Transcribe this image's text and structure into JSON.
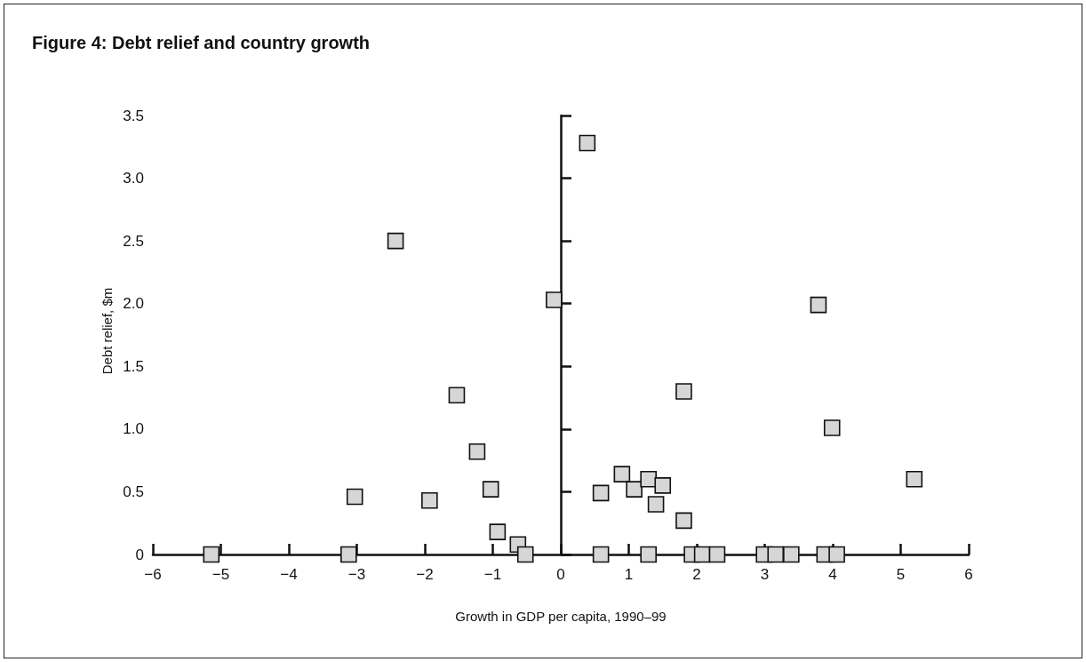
{
  "chart_data": {
    "type": "scatter",
    "title": "Figure 4: Debt relief and country growth",
    "xlabel": "Growth in GDP per capita, 1990–99",
    "ylabel": "Debt relief, $m",
    "x": [
      -5.14,
      -3.12,
      -3.03,
      -2.43,
      -1.93,
      -1.53,
      -1.23,
      -1.03,
      -0.93,
      -0.63,
      -0.52,
      -0.1,
      0.39,
      0.59,
      0.59,
      0.9,
      1.08,
      1.29,
      1.5,
      1.4,
      1.29,
      1.81,
      1.81,
      1.93,
      2.08,
      2.3,
      2.99,
      3.16,
      3.39,
      3.88,
      4.06,
      3.79,
      3.99,
      5.2
    ],
    "values": [
      0,
      0,
      0.46,
      2.5,
      0.43,
      1.27,
      0.82,
      0.52,
      0.18,
      0.08,
      0,
      2.03,
      3.28,
      0.49,
      0,
      0.64,
      0.52,
      0.6,
      0.55,
      0.4,
      0,
      1.3,
      0.27,
      0,
      0,
      0,
      0,
      0,
      0,
      0,
      0,
      1.99,
      1.01,
      0.6
    ],
    "color": "#d6d6d6",
    "marker": "square",
    "xlim": [
      -6,
      6
    ],
    "xticks": [
      {
        "value": -6,
        "label": "−6"
      },
      {
        "value": -5,
        "label": "−5"
      },
      {
        "value": -4,
        "label": "−4"
      },
      {
        "value": -3,
        "label": "−3"
      },
      {
        "value": -2,
        "label": "−2"
      },
      {
        "value": -1,
        "label": "−1"
      },
      0,
      1,
      2,
      3,
      4,
      5,
      6
    ],
    "ylim": [
      0,
      3.5
    ],
    "yticks": [
      0,
      0.5,
      {
        "value": 1,
        "label": "1.0"
      },
      1.5,
      {
        "value": 2,
        "label": "2.0"
      },
      2.5,
      {
        "value": 3,
        "label": "3.0"
      },
      3.5
    ]
  }
}
